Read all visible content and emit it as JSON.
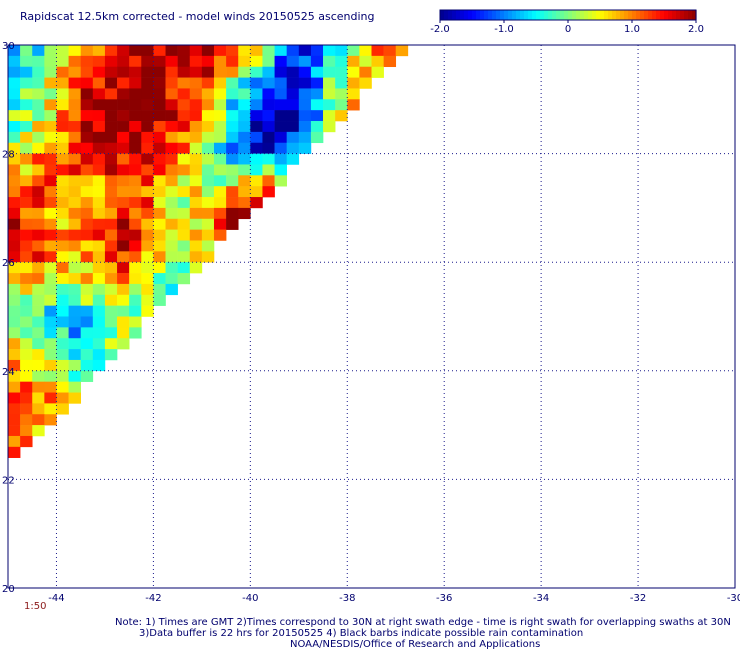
{
  "chart_data": {
    "type": "heatmap",
    "title": "Rapidscat 12.5km corrected - model winds 20150525 ascending",
    "xlabel": "",
    "ylabel": "",
    "x_ticks": [
      -44,
      -42,
      -40,
      -38,
      -36,
      -34,
      -32,
      -30
    ],
    "x_tick_labels": [
      "-44",
      "-42",
      "-40",
      "-38",
      "-36",
      "-34",
      "-32",
      "-30"
    ],
    "y_ticks": [
      20,
      22,
      24,
      26,
      28,
      30
    ],
    "y_tick_labels": [
      "20",
      "22",
      "24",
      "26",
      "28",
      "30"
    ],
    "xlim": [
      -45.0,
      -30.0
    ],
    "ylim": [
      20,
      30
    ],
    "grid": true,
    "colorbar": {
      "position": "top-right",
      "range": [
        -2.0,
        2.0
      ],
      "ticks": [
        "-2.0",
        "-1.0",
        "0",
        "1.0",
        "2.0"
      ],
      "colors": [
        "#00008c",
        "#0000ff",
        "#0080ff",
        "#00ffff",
        "#80ff80",
        "#ffff00",
        "#ff8000",
        "#ff0000",
        "#8b0000"
      ]
    },
    "swath_edge": [
      [
        -36.7,
        30.0
      ],
      [
        -45.0,
        22.2
      ]
    ],
    "cell_size_deg": [
      0.25,
      0.2
    ],
    "bands": [
      {
        "name": "upper",
        "lat": [
          27.6,
          30.0
        ],
        "values": [
          [
            -0.4,
            -0.6,
            0.3,
            0.6,
            1.4,
            1.8,
            1.7,
            1.6,
            1.9,
            1.2,
            0.6,
            -0.9,
            -1.5,
            -0.3,
            0.5,
            0.9,
            1.2
          ],
          [
            -0.3,
            0.2,
            0.8,
            1.7,
            2.0,
            2.0,
            1.9,
            1.4,
            0.8,
            -0.7,
            -1.8,
            -2.0,
            -1.2,
            0.2,
            0.8,
            1.3,
            1.0
          ],
          [
            0.0,
            0.5,
            1.2,
            1.9,
            2.0,
            1.8,
            1.1,
            0.5,
            -0.6,
            -1.6,
            -1.9,
            -1.4,
            -0.4,
            0.6,
            1.1,
            1.5,
            0.9
          ]
        ]
      },
      {
        "name": "middle",
        "lat": [
          25.6,
          27.8
        ],
        "values": [
          [
            1.2,
            1.5,
            0.8,
            0.3,
            1.0,
            1.4,
            0.7,
            0.2,
            1.1,
            1.8,
            1.2
          ],
          [
            1.6,
            1.1,
            0.5,
            1.3,
            1.7,
            0.9,
            0.1,
            0.8,
            1.9,
            1.4,
            0.6
          ],
          [
            1.0,
            1.8,
            1.2,
            0.6,
            1.4,
            0.7,
            -0.2,
            0.5,
            1.3,
            1.0,
            0.4
          ]
        ]
      },
      {
        "name": "lower",
        "lat": [
          22.2,
          25.8
        ],
        "values": [
          [
            -0.3,
            -0.8,
            0.2,
            0.6,
            -0.5,
            0.1
          ],
          [
            0.4,
            -0.2,
            -0.9,
            0.3,
            0.0,
            -0.6
          ],
          [
            1.3,
            1.0,
            0.5,
            -0.1,
            0.2,
            0.3
          ],
          [
            1.1,
            0.7,
            0.3,
            0.5,
            0.0,
            -0.2
          ]
        ]
      }
    ],
    "time_label": "1:50"
  },
  "notes": {
    "line1": "Note: 1) Times are GMT 2)Times correspond to 30N at right swath edge - time is right swath for overlapping swaths at 30N",
    "line2": "3)Data buffer is 22 hrs for 20150525 4) Black barbs indicate possible rain contamination",
    "line3": "NOAA/NESDIS/Office of Research and Applications"
  }
}
